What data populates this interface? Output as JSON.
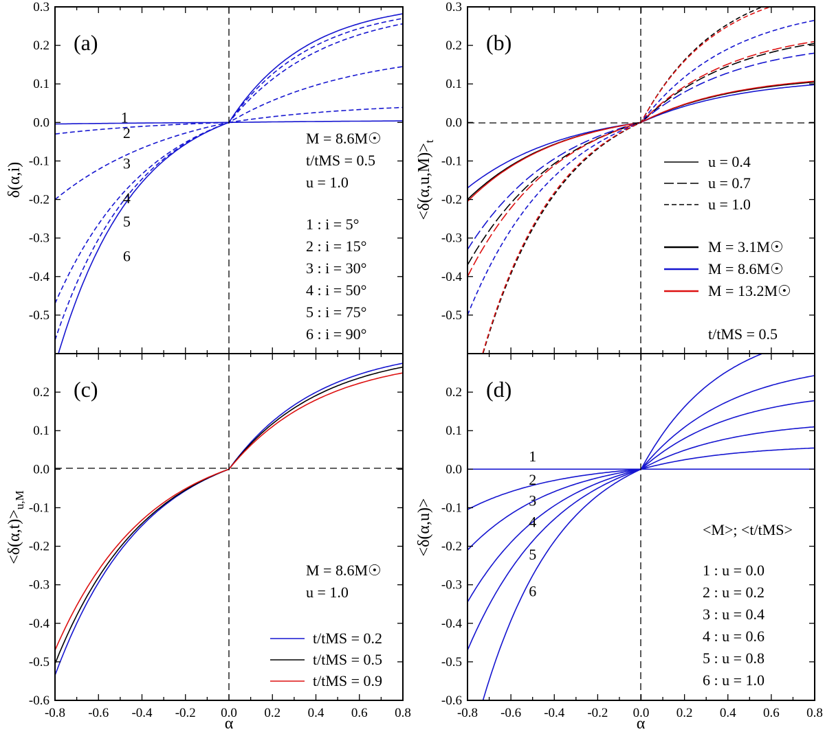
{
  "chart_data": [
    {
      "id": "a",
      "type": "line",
      "panel_label": "(a)",
      "xlabel": "",
      "ylabel": "δ(α,i)",
      "xlim": [
        -0.8,
        0.8
      ],
      "ylim": [
        -0.6,
        0.3
      ],
      "xticks": [],
      "yticks": [
        "0.3",
        "0.2",
        "0.1",
        "0.0",
        "-0.1",
        "-0.2",
        "-0.3",
        "-0.4",
        "-0.5"
      ],
      "reference_lines": {
        "x0": "dashed",
        "y0": "none"
      },
      "annotations": [
        "M = 8.6M☉",
        "t/tMS = 0.5",
        "u = 1.0",
        "1 : i = 5°",
        "2 : i = 15°",
        "3 : i = 30°",
        "4 : i = 50°",
        "5 : i = 75°",
        "6 : i = 90°"
      ],
      "series": [
        {
          "name": "1",
          "color": "#1515d0",
          "dash": "",
          "ends": [
            -0.004,
            0.004
          ],
          "k": 1.0,
          "label_at": [
            -0.48,
            0.0
          ]
        },
        {
          "name": "2",
          "color": "#1515d0",
          "dash": "7,4",
          "ends": [
            -0.03,
            0.039
          ],
          "k": 1.3,
          "label_at": [
            -0.47,
            -0.04
          ]
        },
        {
          "name": "3",
          "color": "#1515d0",
          "dash": "7,4",
          "ends": [
            -0.2,
            0.145
          ],
          "k": 1.38,
          "label_at": [
            -0.47,
            -0.12
          ]
        },
        {
          "name": "4",
          "color": "#1515d0",
          "dash": "7,4",
          "ends": [
            -0.47,
            0.256
          ],
          "k": 1.84,
          "label_at": [
            -0.47,
            -0.21
          ]
        },
        {
          "name": "5",
          "color": "#1515d0",
          "dash": "7,4",
          "ends": [
            -0.565,
            0.27
          ],
          "k": 2.09,
          "label_at": [
            -0.47,
            -0.27
          ]
        },
        {
          "name": "6",
          "color": "#1515d0",
          "dash": "",
          "ends": [
            -0.63,
            0.282
          ],
          "k": 2.23,
          "label_at": [
            -0.47,
            -0.36
          ]
        }
      ]
    },
    {
      "id": "b",
      "type": "line",
      "panel_label": "(b)",
      "xlabel": "",
      "ylabel": "<δ(α,u,M)>t",
      "xlim": [
        -0.8,
        0.8
      ],
      "ylim": [
        -0.6,
        0.3
      ],
      "xticks": [],
      "yticks": [
        "0.3",
        "0.2",
        "0.1",
        "0.0",
        "-0.1",
        "-0.2",
        "-0.3",
        "-0.4",
        "-0.5"
      ],
      "reference_lines": {
        "x0": "dashed",
        "y0": "dashed"
      },
      "annotations": [
        "t/tMS = 0.5"
      ],
      "legend": [
        {
          "label": "u = 0.4",
          "color": "#000000",
          "dash": ""
        },
        {
          "label": "u = 0.7",
          "color": "#000000",
          "dash": "14,5"
        },
        {
          "label": "u = 1.0",
          "color": "#000000",
          "dash": "7,4"
        },
        {
          "label": "M = 3.1M☉",
          "color": "#000000",
          "dash": ""
        },
        {
          "label": "M = 8.6M☉",
          "color": "#1515d0",
          "dash": ""
        },
        {
          "label": "M = 13.2M☉",
          "color": "#dd1111",
          "dash": ""
        }
      ],
      "series": [
        {
          "name": "M = 8.6M☉, u = 0.4",
          "color": "#1515d0",
          "dash": "",
          "ends": [
            -0.17,
            0.098
          ],
          "k": 1.73
        },
        {
          "name": "M = 3.1M☉, u = 0.4",
          "color": "#000000",
          "dash": "",
          "ends": [
            -0.2,
            0.105
          ],
          "k": 1.85
        },
        {
          "name": "M = 13.2M☉, u = 0.4",
          "color": "#dd1111",
          "dash": "",
          "ends": [
            -0.205,
            0.107
          ],
          "k": 1.87
        },
        {
          "name": "M = 8.6M☉, u = 0.7",
          "color": "#1515d0",
          "dash": "14,5",
          "ends": [
            -0.33,
            0.18
          ],
          "k": 1.83
        },
        {
          "name": "M = 3.1M☉, u = 0.7",
          "color": "#000000",
          "dash": "14,5",
          "ends": [
            -0.37,
            0.205
          ],
          "k": 1.8
        },
        {
          "name": "M = 13.2M☉, u = 0.7",
          "color": "#dd1111",
          "dash": "14,5",
          "ends": [
            -0.4,
            0.21
          ],
          "k": 1.9
        },
        {
          "name": "M = 8.6M☉, u = 1.0",
          "color": "#1515d0",
          "dash": "7,4",
          "ends": [
            -0.5,
            0.265
          ],
          "k": 1.89
        },
        {
          "name": "M = 3.1M☉, u = 1.0",
          "color": "#000000",
          "dash": "7,4",
          "ends": [
            -0.75,
            0.34
          ],
          "k": 2.2
        },
        {
          "name": "M = 13.2M☉, u = 1.0",
          "color": "#dd1111",
          "dash": "7,4",
          "ends": [
            -0.75,
            0.33
          ],
          "k": 2.27
        }
      ]
    },
    {
      "id": "c",
      "type": "line",
      "panel_label": "(c)",
      "xlabel": "α",
      "ylabel": "<δ(α,t)>u,M",
      "xlim": [
        -0.8,
        0.8
      ],
      "ylim": [
        -0.6,
        0.3
      ],
      "xticks": [
        "-0.8",
        "-0.6",
        "-0.4",
        "-0.2",
        "0.0",
        "0.2",
        "0.4",
        "0.6",
        "0.8"
      ],
      "yticks": [
        "0.2",
        "0.1",
        "0.0",
        "-0.1",
        "-0.2",
        "-0.3",
        "-0.4",
        "-0.5",
        "-0.6"
      ],
      "reference_lines": {
        "x0": "dashed",
        "y0": "dashed"
      },
      "annotations": [
        "M = 8.6M☉",
        "u = 1.0"
      ],
      "legend": [
        {
          "label": "t/tMS = 0.2",
          "color": "#1515d0",
          "dash": ""
        },
        {
          "label": "t/tMS = 0.5",
          "color": "#000000",
          "dash": ""
        },
        {
          "label": "t/tMS = 0.9",
          "color": "#dd1111",
          "dash": ""
        }
      ],
      "series": [
        {
          "name": "t/tMS = 0.2",
          "color": "#1515d0",
          "dash": "",
          "ends": [
            -0.535,
            0.275
          ],
          "k": 1.95
        },
        {
          "name": "t/tMS = 0.5",
          "color": "#000000",
          "dash": "",
          "ends": [
            -0.505,
            0.265
          ],
          "k": 1.9
        },
        {
          "name": "t/tMS = 0.9",
          "color": "#dd1111",
          "dash": "",
          "ends": [
            -0.47,
            0.25
          ],
          "k": 1.88
        }
      ]
    },
    {
      "id": "d",
      "type": "line",
      "panel_label": "(d)",
      "xlabel": "α",
      "ylabel": "<δ(α,u)>",
      "xlim": [
        -0.8,
        0.8
      ],
      "ylim": [
        -0.6,
        0.3
      ],
      "xticks": [
        "-0.8",
        "-0.6",
        "-0.4",
        "-0.2",
        "0.0",
        "0.2",
        "0.4",
        "0.6",
        "0.8"
      ],
      "yticks": [
        "0.2",
        "0.1",
        "0.0",
        "-0.1",
        "-0.2",
        "-0.3",
        "-0.4",
        "-0.5",
        "-0.6"
      ],
      "reference_lines": {
        "x0": "dashed",
        "y0": "none"
      },
      "annotations": [
        "<M>; <t/tMS>",
        "1 : u = 0.0",
        "2 : u = 0.2",
        "3 : u = 0.4",
        "4 : u = 0.6",
        "5 : u = 0.8",
        "6 : u = 1.0"
      ],
      "series": [
        {
          "name": "1",
          "color": "#1515d0",
          "dash": "",
          "ends": [
            0.0,
            0.0
          ],
          "k": 1.0,
          "label_at": [
            -0.5,
            0.02
          ]
        },
        {
          "name": "2",
          "color": "#1515d0",
          "dash": "",
          "ends": [
            -0.105,
            0.055
          ],
          "k": 1.9,
          "label_at": [
            -0.5,
            -0.04
          ]
        },
        {
          "name": "3",
          "color": "#1515d0",
          "dash": "",
          "ends": [
            -0.21,
            0.11
          ],
          "k": 1.91,
          "label_at": [
            -0.5,
            -0.095
          ]
        },
        {
          "name": "4",
          "color": "#1515d0",
          "dash": "",
          "ends": [
            -0.345,
            0.178
          ],
          "k": 1.94,
          "label_at": [
            -0.5,
            -0.15
          ]
        },
        {
          "name": "5",
          "color": "#1515d0",
          "dash": "",
          "ends": [
            -0.47,
            0.243
          ],
          "k": 1.93,
          "label_at": [
            -0.5,
            -0.235
          ]
        },
        {
          "name": "6",
          "color": "#1515d0",
          "dash": "",
          "ends": [
            -0.75,
            0.34
          ],
          "k": 2.2,
          "label_at": [
            -0.5,
            -0.33
          ]
        }
      ]
    }
  ]
}
